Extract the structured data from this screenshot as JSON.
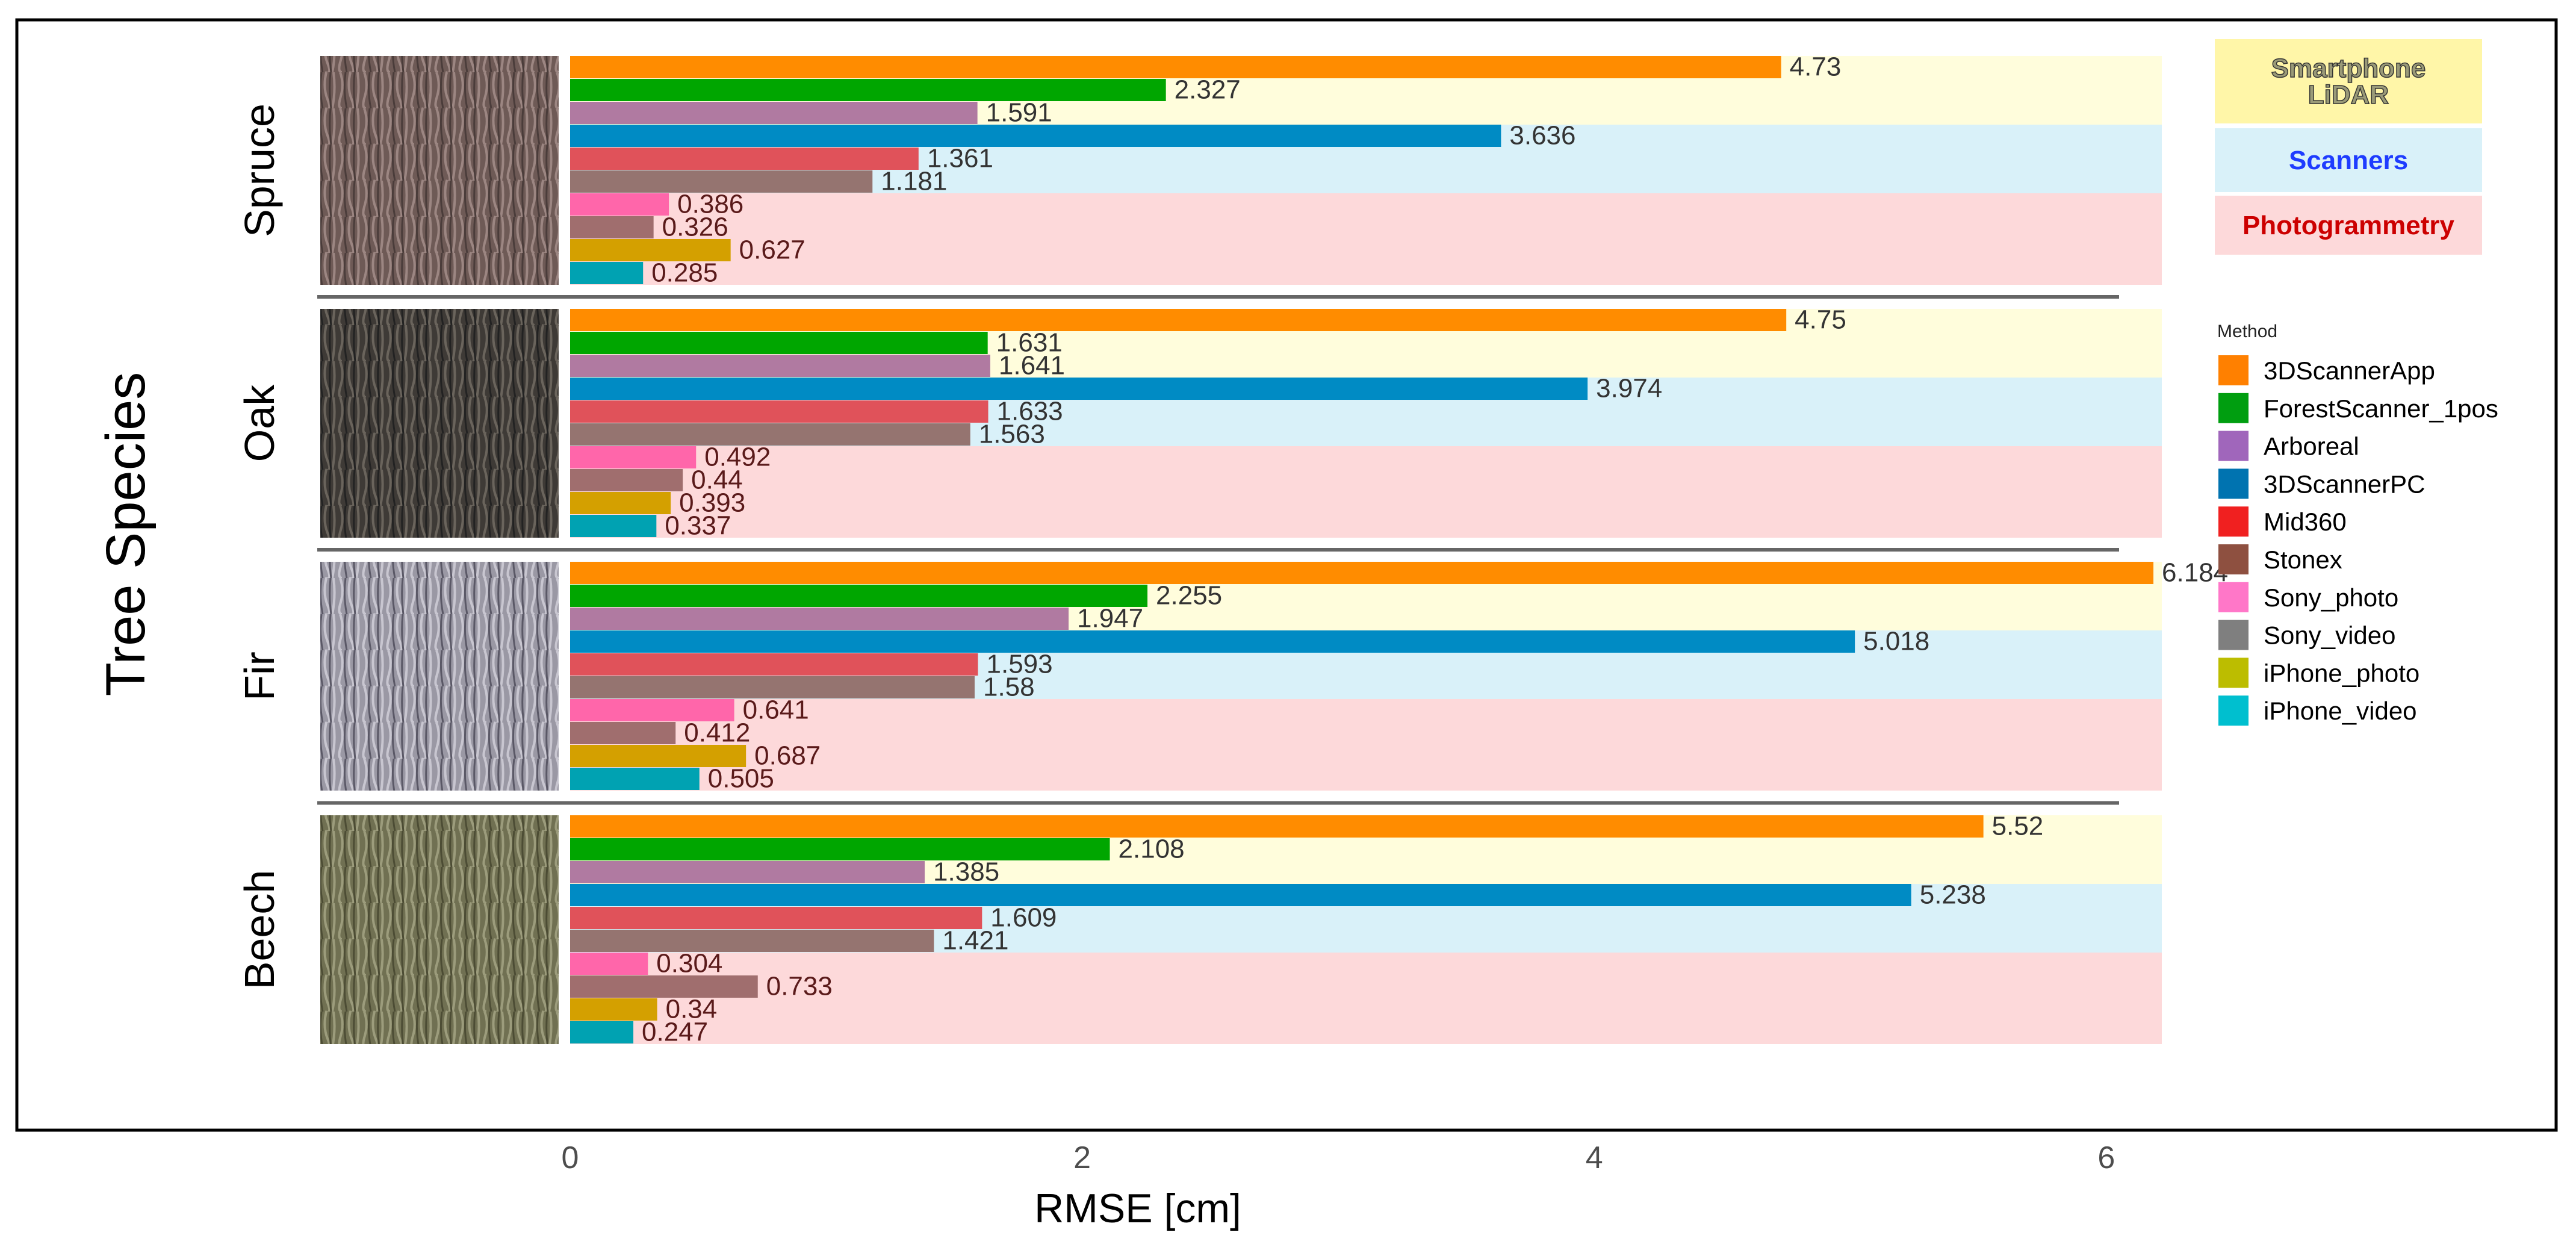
{
  "chart_data": {
    "type": "bar",
    "orientation": "horizontal",
    "xlabel": "RMSE [cm]",
    "ylabel": "Tree Species",
    "xlim": [
      0,
      6.5
    ],
    "xticks": [
      "0",
      "2",
      "4",
      "6"
    ],
    "xtick_values": [
      0,
      2,
      4,
      6
    ],
    "categories": [
      "Spruce",
      "Oak",
      "Fir",
      "Beech"
    ],
    "legend_title": "Method",
    "legend_placement": "right",
    "groups": [
      {
        "label": "Smartphone\nLiDAR",
        "lines": [
          "Smartphone",
          "LiDAR"
        ],
        "methods": [
          "3DScannerApp",
          "ForestScanner_1pos",
          "Arboreal"
        ],
        "band_color": "#FFFDDC",
        "legend_color": "#FFF6A8",
        "text_color": "#6B6B4A"
      },
      {
        "label": "Scanners",
        "lines": [
          "Scanners"
        ],
        "methods": [
          "3DScannerPC",
          "Mid360",
          "Stonex"
        ],
        "band_color": "#D9F1F9",
        "legend_color": "#D9F1F9",
        "text_color": "#1E3CFF"
      },
      {
        "label": "Photogrammetry",
        "lines": [
          "Photogrammetry"
        ],
        "methods": [
          "Sony_photo",
          "Sony_video",
          "iPhone_photo",
          "iPhone_video"
        ],
        "band_color": "#FDD9DA",
        "legend_color": "#FDD9DA",
        "text_color": "#CC0000"
      }
    ],
    "series": [
      {
        "name": "3DScannerApp",
        "color": "#FF8C00",
        "legend_color": "#FF8000",
        "values": [
          4.73,
          4.75,
          6.184,
          5.52
        ],
        "labels": [
          "4.73",
          "4.75",
          "6.184",
          "5.52"
        ]
      },
      {
        "name": "ForestScanner_1pos",
        "color": "#00A600",
        "legend_color": "#009E10",
        "values": [
          2.327,
          1.631,
          2.255,
          2.108
        ],
        "labels": [
          "2.327",
          "1.631",
          "2.255",
          "2.108"
        ]
      },
      {
        "name": "Arboreal",
        "color": "#B07AA1",
        "legend_color": "#A066BB",
        "values": [
          1.591,
          1.641,
          1.947,
          1.385
        ],
        "labels": [
          "1.591",
          "1.641",
          "1.947",
          "1.385"
        ]
      },
      {
        "name": "3DScannerPC",
        "color": "#008BC4",
        "legend_color": "#0073B0",
        "values": [
          3.636,
          3.974,
          5.018,
          5.238
        ],
        "labels": [
          "3.636",
          "3.974",
          "5.018",
          "5.238"
        ]
      },
      {
        "name": "Mid360",
        "color": "#E0525A",
        "legend_color": "#F02020",
        "values": [
          1.361,
          1.633,
          1.593,
          1.609
        ],
        "labels": [
          "1.361",
          "1.633",
          "1.593",
          "1.609"
        ]
      },
      {
        "name": "Stonex",
        "color": "#957470",
        "legend_color": "#8E5040",
        "values": [
          1.181,
          1.563,
          1.58,
          1.421
        ],
        "labels": [
          "1.181",
          "1.563",
          "1.58",
          "1.421"
        ]
      },
      {
        "name": "Sony_photo",
        "color": "#FF66AA",
        "legend_color": "#FF77C8",
        "values": [
          0.386,
          0.492,
          0.641,
          0.304
        ],
        "labels": [
          "0.386",
          "0.492",
          "0.641",
          "0.304"
        ]
      },
      {
        "name": "Sony_video",
        "color": "#A06E6E",
        "legend_color": "#7F7F7F",
        "values": [
          0.326,
          0.44,
          0.412,
          0.733
        ],
        "labels": [
          "0.326",
          "0.44",
          "0.412",
          "0.733"
        ]
      },
      {
        "name": "iPhone_photo",
        "color": "#D4A000",
        "legend_color": "#BCBD00",
        "values": [
          0.627,
          0.393,
          0.687,
          0.34
        ],
        "labels": [
          "0.627",
          "0.393",
          "0.687",
          "0.34"
        ]
      },
      {
        "name": "iPhone_video",
        "color": "#00A2B2",
        "legend_color": "#00BFCF",
        "values": [
          0.285,
          0.337,
          0.505,
          0.247
        ],
        "labels": [
          "0.285",
          "0.337",
          "0.505",
          "0.247"
        ]
      }
    ],
    "bark_colors": {
      "Spruce": [
        "#6E5A56",
        "#9C8682",
        "#4A3C3A"
      ],
      "Oak": [
        "#3E3A36",
        "#6A645C",
        "#222"
      ],
      "Fir": [
        "#9A98A4",
        "#C8C6D0",
        "#5A5866"
      ],
      "Beech": [
        "#707052",
        "#9C9C7C",
        "#4C4C34"
      ]
    }
  }
}
